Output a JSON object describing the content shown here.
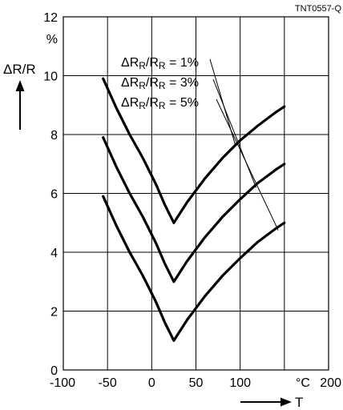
{
  "chart_data": {
    "type": "line",
    "figure_code": "TNT0557-Q",
    "xlabel": "T",
    "xunit": "°C",
    "ylabel": "ΔR/R",
    "yunit": "%",
    "xlim": [
      -100,
      200
    ],
    "ylim": [
      0,
      12
    ],
    "xticks": [
      -100,
      -50,
      0,
      50,
      100,
      150,
      200
    ],
    "yticks": [
      0,
      2,
      4,
      6,
      8,
      10,
      12
    ],
    "xtick_labels": [
      "-100",
      "-50",
      "0",
      "50",
      "100",
      "",
      "200"
    ],
    "ytick_labels": [
      "0",
      "2",
      "4",
      "6",
      "8",
      "10",
      "12"
    ],
    "grid": true,
    "series": [
      {
        "name": "ΔRR/RR = 1%",
        "label_parts": {
          "lead": "ΔR",
          "sub1": "R",
          "mid": "/R",
          "sub2": "R",
          "tail": " = 1%"
        },
        "x": [
          -55,
          -40,
          -25,
          -10,
          5,
          15,
          25,
          40,
          60,
          80,
          100,
          120,
          140,
          150
        ],
        "y": [
          9.9,
          8.9,
          8.0,
          7.2,
          6.3,
          5.6,
          5.0,
          5.7,
          6.5,
          7.2,
          7.8,
          8.3,
          8.75,
          8.95
        ]
      },
      {
        "name": "ΔRR/RR = 3%",
        "label_parts": {
          "lead": "ΔR",
          "sub1": "R",
          "mid": "/R",
          "sub2": "R",
          "tail": " = 3%"
        },
        "x": [
          -55,
          -40,
          -25,
          -10,
          5,
          15,
          25,
          40,
          60,
          80,
          100,
          120,
          140,
          150
        ],
        "y": [
          7.9,
          6.9,
          6.0,
          5.2,
          4.3,
          3.6,
          3.0,
          3.7,
          4.5,
          5.2,
          5.8,
          6.35,
          6.8,
          7.0
        ]
      },
      {
        "name": "ΔRR/RR = 5%",
        "label_parts": {
          "lead": "ΔR",
          "sub1": "R",
          "mid": "/R",
          "sub2": "R",
          "tail": " = 5%"
        },
        "x": [
          -55,
          -40,
          -25,
          -10,
          5,
          15,
          25,
          40,
          60,
          80,
          100,
          120,
          140,
          150
        ],
        "y": [
          5.9,
          4.9,
          4.0,
          3.2,
          2.3,
          1.6,
          1.0,
          1.7,
          2.5,
          3.2,
          3.8,
          4.35,
          4.8,
          5.0
        ]
      }
    ],
    "leader_targets": [
      {
        "x": 95,
        "y": 7.6
      },
      {
        "x": 118,
        "y": 6.2
      },
      {
        "x": 143,
        "y": 4.75
      }
    ],
    "legend_placement": "upper-middle, with leader lines to curves"
  }
}
